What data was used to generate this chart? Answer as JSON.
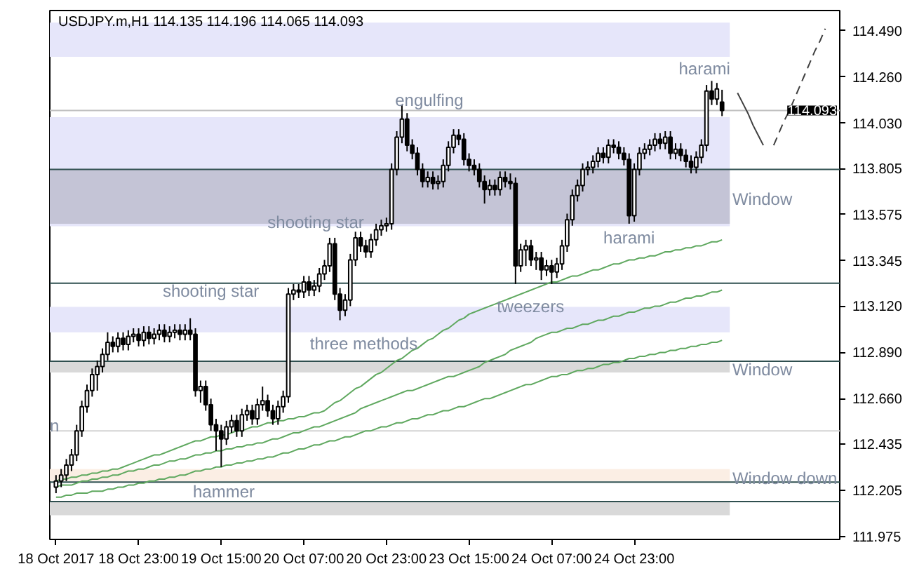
{
  "chart_data": {
    "type": "candlestick",
    "title": "USDJPY.m,H1 114.135 114.196 114.065 114.093",
    "categories": [
      "18 Oct 2017",
      null,
      null,
      null,
      null,
      null,
      null,
      null,
      null,
      null,
      null,
      null,
      null,
      null,
      null,
      null,
      "18 Oct 23:00",
      null,
      null,
      null,
      null,
      null,
      null,
      null,
      null,
      null,
      null,
      null,
      null,
      null,
      null,
      null,
      "19 Oct 15:00",
      null,
      null,
      null,
      null,
      null,
      null,
      null,
      null,
      null,
      null,
      null,
      null,
      null,
      null,
      null,
      "20 Oct 07:00",
      null,
      null,
      null,
      null,
      null,
      null,
      null,
      null,
      null,
      null,
      null,
      null,
      null,
      null,
      null,
      "20 Oct 23:00",
      null,
      null,
      null,
      null,
      null,
      null,
      null,
      null,
      null,
      null,
      null,
      null,
      null,
      null,
      null,
      "23 Oct 15:00",
      null,
      null,
      null,
      null,
      null,
      null,
      null,
      null,
      null,
      null,
      null,
      null,
      null,
      null,
      null,
      "24 Oct 07:00",
      null,
      null,
      null,
      null,
      null,
      null,
      null,
      null,
      null,
      null,
      null,
      null,
      null,
      null,
      null,
      "24 Oct 23:00",
      null,
      null,
      null,
      null,
      null,
      null,
      null,
      null,
      null,
      null,
      null,
      null,
      null,
      null,
      null,
      null,
      null,
      null,
      null,
      null,
      null,
      null,
      null,
      null,
      null,
      null,
      null,
      null,
      null,
      null,
      null,
      null,
      null,
      null,
      null,
      null,
      null
    ],
    "ohlc": [
      [
        112.22,
        112.28,
        112.19,
        112.25
      ],
      [
        112.25,
        112.31,
        112.22,
        112.28
      ],
      [
        112.28,
        112.36,
        112.25,
        112.33
      ],
      [
        112.33,
        112.41,
        112.3,
        112.38
      ],
      [
        112.38,
        112.53,
        112.35,
        112.5
      ],
      [
        112.5,
        112.65,
        112.47,
        112.62
      ],
      [
        112.62,
        112.73,
        112.59,
        112.7
      ],
      [
        112.7,
        112.81,
        112.67,
        112.78
      ],
      [
        112.78,
        112.85,
        112.7,
        112.82
      ],
      [
        112.82,
        112.91,
        112.79,
        112.88
      ],
      [
        112.88,
        112.99,
        112.85,
        112.94
      ],
      [
        112.94,
        112.97,
        112.89,
        112.92
      ],
      [
        112.92,
        112.99,
        112.89,
        112.96
      ],
      [
        112.96,
        112.99,
        112.9,
        112.93
      ],
      [
        112.93,
        113.0,
        112.9,
        112.97
      ],
      [
        112.97,
        113.01,
        112.94,
        112.98
      ],
      [
        112.98,
        113.01,
        112.92,
        112.95
      ],
      [
        112.95,
        113.02,
        112.92,
        112.99
      ],
      [
        112.99,
        113.02,
        112.93,
        112.96
      ],
      [
        112.96,
        113.01,
        112.93,
        112.98
      ],
      [
        112.98,
        113.03,
        112.95,
        113.0
      ],
      [
        113.0,
        113.03,
        112.94,
        112.97
      ],
      [
        112.97,
        113.02,
        112.94,
        112.99
      ],
      [
        112.99,
        113.03,
        112.96,
        113.0
      ],
      [
        113.0,
        113.03,
        112.95,
        112.98
      ],
      [
        112.98,
        113.03,
        112.95,
        113.0
      ],
      [
        113.0,
        113.06,
        112.95,
        112.98
      ],
      [
        112.98,
        113.01,
        112.67,
        112.7
      ],
      [
        112.7,
        112.75,
        112.64,
        112.72
      ],
      [
        112.72,
        112.75,
        112.6,
        112.63
      ],
      [
        112.63,
        112.66,
        112.5,
        112.53
      ],
      [
        112.53,
        112.56,
        112.4,
        112.5
      ],
      [
        112.5,
        112.53,
        112.32,
        112.46
      ],
      [
        112.46,
        112.55,
        112.43,
        112.52
      ],
      [
        112.52,
        112.58,
        112.49,
        112.55
      ],
      [
        112.55,
        112.58,
        112.47,
        112.5
      ],
      [
        112.5,
        112.61,
        112.47,
        112.58
      ],
      [
        112.58,
        112.63,
        112.55,
        112.6
      ],
      [
        112.6,
        112.63,
        112.53,
        112.56
      ],
      [
        112.56,
        112.66,
        112.53,
        112.63
      ],
      [
        112.63,
        112.72,
        112.6,
        112.65
      ],
      [
        112.65,
        112.68,
        112.57,
        112.6
      ],
      [
        112.6,
        112.63,
        112.53,
        112.56
      ],
      [
        112.56,
        112.65,
        112.53,
        112.62
      ],
      [
        112.62,
        112.7,
        112.59,
        112.67
      ],
      [
        112.67,
        113.21,
        112.64,
        113.18
      ],
      [
        113.18,
        113.23,
        113.15,
        113.2
      ],
      [
        113.2,
        113.23,
        113.16,
        113.19
      ],
      [
        113.19,
        113.27,
        113.16,
        113.24
      ],
      [
        113.24,
        113.27,
        113.17,
        113.2
      ],
      [
        113.2,
        113.25,
        113.17,
        113.22
      ],
      [
        113.22,
        113.31,
        113.19,
        113.28
      ],
      [
        113.28,
        113.35,
        113.25,
        113.32
      ],
      [
        113.32,
        113.46,
        113.29,
        113.43
      ],
      [
        113.43,
        113.46,
        113.15,
        113.18
      ],
      [
        113.18,
        113.21,
        113.05,
        113.1
      ],
      [
        113.1,
        113.18,
        113.07,
        113.15
      ],
      [
        113.15,
        113.38,
        113.12,
        113.35
      ],
      [
        113.35,
        113.49,
        113.32,
        113.46
      ],
      [
        113.46,
        113.49,
        113.39,
        113.42
      ],
      [
        113.42,
        113.45,
        113.36,
        113.39
      ],
      [
        113.39,
        113.48,
        113.36,
        113.45
      ],
      [
        113.45,
        113.53,
        113.42,
        113.5
      ],
      [
        113.5,
        113.55,
        113.47,
        113.52
      ],
      [
        113.52,
        113.56,
        113.49,
        113.53
      ],
      [
        113.53,
        113.83,
        113.5,
        113.8
      ],
      [
        113.8,
        113.99,
        113.77,
        113.96
      ],
      [
        113.96,
        114.12,
        113.93,
        114.05
      ],
      [
        114.05,
        114.08,
        113.89,
        113.92
      ],
      [
        113.92,
        113.95,
        113.85,
        113.88
      ],
      [
        113.88,
        113.91,
        113.77,
        113.8
      ],
      [
        113.8,
        113.83,
        113.71,
        113.74
      ],
      [
        113.74,
        113.79,
        113.71,
        113.76
      ],
      [
        113.76,
        113.79,
        113.7,
        113.73
      ],
      [
        113.73,
        113.77,
        113.7,
        113.74
      ],
      [
        113.74,
        113.85,
        113.71,
        113.82
      ],
      [
        113.82,
        113.94,
        113.79,
        113.91
      ],
      [
        113.91,
        114.0,
        113.88,
        113.97
      ],
      [
        113.97,
        114.0,
        113.92,
        113.95
      ],
      [
        113.95,
        113.98,
        113.82,
        113.85
      ],
      [
        113.85,
        113.88,
        113.79,
        113.82
      ],
      [
        113.82,
        113.85,
        113.77,
        113.8
      ],
      [
        113.8,
        113.83,
        113.71,
        113.74
      ],
      [
        113.74,
        113.77,
        113.63,
        113.7
      ],
      [
        113.7,
        113.75,
        113.67,
        113.72
      ],
      [
        113.72,
        113.75,
        113.67,
        113.7
      ],
      [
        113.7,
        113.79,
        113.67,
        113.76
      ],
      [
        113.76,
        113.79,
        113.71,
        113.74
      ],
      [
        113.74,
        113.78,
        113.7,
        113.73
      ],
      [
        113.73,
        113.76,
        113.23,
        113.32
      ],
      [
        113.32,
        113.43,
        113.29,
        113.4
      ],
      [
        113.4,
        113.45,
        113.32,
        113.42
      ],
      [
        113.42,
        113.45,
        113.32,
        113.35
      ],
      [
        113.35,
        113.39,
        113.3,
        113.36
      ],
      [
        113.36,
        113.39,
        113.25,
        113.3
      ],
      [
        113.3,
        113.35,
        113.27,
        113.32
      ],
      [
        113.32,
        113.35,
        113.23,
        113.29
      ],
      [
        113.29,
        113.36,
        113.26,
        113.33
      ],
      [
        113.33,
        113.45,
        113.3,
        113.42
      ],
      [
        113.42,
        113.58,
        113.39,
        113.55
      ],
      [
        113.55,
        113.7,
        113.52,
        113.67
      ],
      [
        113.67,
        113.75,
        113.64,
        113.72
      ],
      [
        113.72,
        113.83,
        113.69,
        113.8
      ],
      [
        113.8,
        113.84,
        113.77,
        113.81
      ],
      [
        113.81,
        113.87,
        113.78,
        113.84
      ],
      [
        113.84,
        113.91,
        113.81,
        113.88
      ],
      [
        113.88,
        113.91,
        113.83,
        113.86
      ],
      [
        113.86,
        113.95,
        113.83,
        113.92
      ],
      [
        113.92,
        113.95,
        113.88,
        113.91
      ],
      [
        113.91,
        113.94,
        113.85,
        113.88
      ],
      [
        113.88,
        113.91,
        113.82,
        113.85
      ],
      [
        113.85,
        113.88,
        113.53,
        113.57
      ],
      [
        113.57,
        113.83,
        113.54,
        113.8
      ],
      [
        113.8,
        113.91,
        113.77,
        113.88
      ],
      [
        113.88,
        113.93,
        113.85,
        113.9
      ],
      [
        113.9,
        113.95,
        113.87,
        113.92
      ],
      [
        113.92,
        113.98,
        113.89,
        113.95
      ],
      [
        113.95,
        113.98,
        113.9,
        113.93
      ],
      [
        113.93,
        113.99,
        113.9,
        113.96
      ],
      [
        113.96,
        113.99,
        113.85,
        113.88
      ],
      [
        113.88,
        113.93,
        113.85,
        113.9
      ],
      [
        113.9,
        113.93,
        113.84,
        113.87
      ],
      [
        113.87,
        113.9,
        113.81,
        113.84
      ],
      [
        113.84,
        113.87,
        113.78,
        113.81
      ],
      [
        113.81,
        113.89,
        113.78,
        113.86
      ],
      [
        113.86,
        113.95,
        113.83,
        113.92
      ],
      [
        113.92,
        114.22,
        113.89,
        114.19
      ],
      [
        114.19,
        114.24,
        114.12,
        114.15
      ],
      [
        114.15,
        114.23,
        114.12,
        114.2
      ],
      [
        114.135,
        114.196,
        114.065,
        114.093
      ],
      null,
      null,
      null,
      null,
      null,
      null,
      null,
      null,
      null,
      null,
      null,
      null,
      null,
      null,
      null,
      null,
      null,
      null,
      null,
      null
    ],
    "series": [
      {
        "type": "line",
        "color": "#5fa85f",
        "values": [
          112.25,
          112.26,
          112.26,
          112.27,
          112.27,
          112.28,
          112.28,
          112.29,
          112.29,
          112.3,
          112.3,
          112.31,
          112.31,
          112.32,
          112.33,
          112.34,
          112.35,
          112.36,
          112.37,
          112.38,
          112.38,
          112.39,
          112.4,
          112.41,
          112.42,
          112.43,
          112.44,
          112.45,
          112.45,
          112.46,
          112.47,
          112.47,
          112.48,
          112.48,
          112.49,
          112.5,
          112.5,
          112.51,
          112.52,
          112.52,
          112.53,
          112.54,
          112.54,
          112.55,
          112.55,
          112.56,
          112.56,
          112.57,
          112.57,
          112.58,
          112.59,
          112.59,
          112.6,
          112.62,
          112.64,
          112.65,
          112.67,
          112.69,
          112.71,
          112.72,
          112.74,
          112.76,
          112.78,
          112.79,
          112.81,
          112.83,
          112.85,
          112.86,
          112.88,
          112.9,
          112.91,
          112.93,
          112.95,
          112.96,
          112.98,
          113.0,
          113.01,
          113.03,
          113.05,
          113.06,
          113.08,
          113.09,
          113.1,
          113.11,
          113.12,
          113.13,
          113.14,
          113.15,
          113.16,
          113.17,
          113.18,
          113.19,
          113.2,
          113.21,
          113.22,
          113.23,
          113.24,
          113.24,
          113.25,
          113.26,
          113.27,
          113.27,
          113.28,
          113.29,
          113.3,
          113.3,
          113.31,
          113.32,
          113.33,
          113.33,
          113.34,
          113.35,
          113.35,
          113.36,
          113.36,
          113.37,
          113.37,
          113.38,
          113.39,
          113.39,
          113.4,
          113.4,
          113.41,
          113.41,
          113.42,
          113.42,
          113.43,
          113.44,
          113.44,
          113.45,
          null,
          null,
          null,
          null,
          null,
          null,
          null,
          null,
          null,
          null,
          null,
          null,
          null,
          null,
          null,
          null,
          null,
          null,
          null,
          null
        ]
      },
      {
        "type": "line",
        "color": "#5fa85f",
        "values": [
          112.22,
          112.23,
          112.23,
          112.23,
          112.24,
          112.25,
          112.25,
          112.26,
          112.26,
          112.27,
          112.27,
          112.28,
          112.28,
          112.29,
          112.3,
          112.3,
          112.31,
          112.31,
          112.32,
          112.33,
          112.33,
          112.34,
          112.35,
          112.35,
          112.36,
          112.36,
          112.37,
          112.38,
          112.38,
          112.39,
          112.39,
          112.4,
          112.4,
          112.41,
          112.41,
          112.42,
          112.42,
          112.43,
          112.43,
          112.44,
          112.44,
          112.45,
          112.46,
          112.46,
          112.47,
          112.48,
          112.49,
          112.49,
          112.5,
          112.51,
          112.52,
          112.52,
          112.53,
          112.54,
          112.55,
          112.56,
          112.57,
          112.58,
          112.59,
          112.61,
          112.62,
          112.63,
          112.64,
          112.65,
          112.66,
          112.67,
          112.68,
          112.69,
          112.7,
          112.7,
          112.71,
          112.72,
          112.73,
          112.74,
          112.75,
          112.76,
          112.77,
          112.77,
          112.78,
          112.79,
          112.8,
          112.81,
          112.82,
          112.84,
          112.85,
          112.86,
          112.87,
          112.88,
          112.9,
          112.91,
          112.92,
          112.93,
          112.94,
          112.96,
          112.97,
          112.98,
          112.99,
          112.99,
          113.0,
          113.01,
          113.01,
          113.02,
          113.03,
          113.03,
          113.04,
          113.05,
          113.05,
          113.06,
          113.07,
          113.07,
          113.08,
          113.09,
          113.09,
          113.1,
          113.11,
          113.11,
          113.12,
          113.12,
          113.13,
          113.14,
          113.14,
          113.15,
          113.16,
          113.16,
          113.17,
          113.17,
          113.18,
          113.19,
          113.19,
          113.2,
          null,
          null,
          null,
          null,
          null,
          null,
          null,
          null,
          null,
          null,
          null,
          null,
          null,
          null,
          null,
          null,
          null,
          null,
          null,
          null
        ]
      },
      {
        "type": "line",
        "color": "#5fa85f",
        "values": [
          112.17,
          112.17,
          112.18,
          112.18,
          112.19,
          112.19,
          112.19,
          112.2,
          112.2,
          112.2,
          112.21,
          112.21,
          112.22,
          112.22,
          112.23,
          112.23,
          112.24,
          112.24,
          112.25,
          112.25,
          112.26,
          112.26,
          112.27,
          112.27,
          112.28,
          112.28,
          112.29,
          112.3,
          112.3,
          112.31,
          112.31,
          112.32,
          112.32,
          112.33,
          112.33,
          112.34,
          112.34,
          112.35,
          112.35,
          112.36,
          112.36,
          112.37,
          112.37,
          112.38,
          112.39,
          112.39,
          112.4,
          112.41,
          112.41,
          112.42,
          112.43,
          112.43,
          112.44,
          112.45,
          112.45,
          112.46,
          112.47,
          112.47,
          112.48,
          112.49,
          112.5,
          112.5,
          112.51,
          112.52,
          112.52,
          112.53,
          112.54,
          112.54,
          112.55,
          112.56,
          112.56,
          112.57,
          112.58,
          112.58,
          112.59,
          112.6,
          112.6,
          112.61,
          112.62,
          112.62,
          112.63,
          112.64,
          112.65,
          112.66,
          112.66,
          112.67,
          112.68,
          112.69,
          112.7,
          112.71,
          112.72,
          112.73,
          112.73,
          112.74,
          112.75,
          112.76,
          112.77,
          112.77,
          112.78,
          112.78,
          112.79,
          112.8,
          112.8,
          112.81,
          112.81,
          112.82,
          112.83,
          112.83,
          112.84,
          112.84,
          112.85,
          112.86,
          112.86,
          112.87,
          112.87,
          112.88,
          112.88,
          112.89,
          112.89,
          112.9,
          112.9,
          112.91,
          112.91,
          112.92,
          112.92,
          112.93,
          112.93,
          112.94,
          112.94,
          112.95,
          null,
          null,
          null,
          null,
          null,
          null,
          null,
          null,
          null,
          null,
          null,
          null,
          null,
          null,
          null,
          null,
          null,
          null,
          null,
          null
        ]
      },
      {
        "type": "line",
        "color": "#404040",
        "line_style": "solid",
        "values": [
          null,
          null,
          null,
          null,
          null,
          null,
          null,
          null,
          null,
          null,
          null,
          null,
          null,
          null,
          null,
          null,
          null,
          null,
          null,
          null,
          null,
          null,
          null,
          null,
          null,
          null,
          null,
          null,
          null,
          null,
          null,
          null,
          null,
          null,
          null,
          null,
          null,
          null,
          null,
          null,
          null,
          null,
          null,
          null,
          null,
          null,
          null,
          null,
          null,
          null,
          null,
          null,
          null,
          null,
          null,
          null,
          null,
          null,
          null,
          null,
          null,
          null,
          null,
          null,
          null,
          null,
          null,
          null,
          null,
          null,
          null,
          null,
          null,
          null,
          null,
          null,
          null,
          null,
          null,
          null,
          null,
          null,
          null,
          null,
          null,
          null,
          null,
          null,
          null,
          null,
          null,
          null,
          null,
          null,
          null,
          null,
          null,
          null,
          null,
          null,
          null,
          null,
          null,
          null,
          null,
          null,
          null,
          null,
          null,
          null,
          null,
          null,
          null,
          null,
          null,
          null,
          null,
          null,
          null,
          null,
          null,
          null,
          null,
          null,
          null,
          null,
          null,
          null,
          null,
          null,
          null,
          null,
          114.18,
          114.13,
          114.08,
          114.02,
          113.97,
          113.92,
          null,
          null,
          null,
          null,
          null,
          null,
          null,
          null,
          null,
          null,
          null,
          null
        ]
      },
      {
        "type": "line",
        "color": "#404040",
        "line_style": "dashed",
        "values": [
          null,
          null,
          null,
          null,
          null,
          null,
          null,
          null,
          null,
          null,
          null,
          null,
          null,
          null,
          null,
          null,
          null,
          null,
          null,
          null,
          null,
          null,
          null,
          null,
          null,
          null,
          null,
          null,
          null,
          null,
          null,
          null,
          null,
          null,
          null,
          null,
          null,
          null,
          null,
          null,
          null,
          null,
          null,
          null,
          null,
          null,
          null,
          null,
          null,
          null,
          null,
          null,
          null,
          null,
          null,
          null,
          null,
          null,
          null,
          null,
          null,
          null,
          null,
          null,
          null,
          null,
          null,
          null,
          null,
          null,
          null,
          null,
          null,
          null,
          null,
          null,
          null,
          null,
          null,
          null,
          null,
          null,
          null,
          null,
          null,
          null,
          null,
          null,
          null,
          null,
          null,
          null,
          null,
          null,
          null,
          null,
          null,
          null,
          null,
          null,
          null,
          null,
          null,
          null,
          null,
          null,
          null,
          null,
          null,
          null,
          null,
          null,
          null,
          null,
          null,
          null,
          null,
          null,
          null,
          null,
          null,
          null,
          null,
          null,
          null,
          null,
          null,
          null,
          null,
          null,
          null,
          null,
          null,
          null,
          null,
          null,
          null,
          null,
          null,
          113.92,
          113.98,
          114.04,
          114.09,
          114.15,
          114.21,
          114.27,
          114.33,
          114.39,
          114.44,
          114.5
        ]
      }
    ],
    "ylim": [
      111.96,
      114.59
    ],
    "yticks": [
      111.975,
      112.205,
      112.435,
      {
        "value": 112.66,
        "label": "112.660"
      },
      {
        "value": 112.89,
        "label": "112.890"
      },
      {
        "value": 113.12,
        "label": "113.120"
      },
      113.345,
      113.575,
      113.805,
      {
        "value": 114.03,
        "label": "114.030"
      },
      {
        "value": 114.26,
        "label": "114.260"
      },
      {
        "value": 114.49,
        "label": "114.490"
      }
    ],
    "bands": [
      {
        "axis": "y",
        "from": 114.36,
        "to": 114.53,
        "color": "#e6e6fa"
      },
      {
        "axis": "y",
        "from": 113.517,
        "to": 114.06,
        "color": "#e6e6fa",
        "label": "Window"
      },
      {
        "axis": "y",
        "from": 113.53,
        "to": 113.8,
        "color": "#c4c4d6"
      },
      {
        "axis": "y",
        "from": 112.99,
        "to": 113.116,
        "color": "#e6e6fa"
      },
      {
        "axis": "y",
        "from": 112.79,
        "to": 112.846,
        "color": "#d9d9d9",
        "label": "Window"
      },
      {
        "axis": "y",
        "from": 112.25,
        "to": 112.31,
        "color": "#fbeee4",
        "label": "Window down"
      },
      {
        "axis": "y",
        "from": 112.08,
        "to": 112.148,
        "color": "#d9d9d9"
      }
    ],
    "ref_lines": [
      {
        "axis": "y",
        "value": 114.093,
        "label": "114.093",
        "color": "#c0c0c0"
      },
      {
        "axis": "y",
        "value": 113.8,
        "color": "#2f4f4f"
      },
      {
        "axis": "y",
        "value": 113.234,
        "color": "#2f4f4f"
      },
      {
        "axis": "y",
        "value": 112.846,
        "color": "#2f4f4f"
      },
      {
        "axis": "y",
        "value": 112.5,
        "color": "#d3d3d3"
      },
      {
        "axis": "y",
        "value": 112.245,
        "color": "#2f4f4f"
      },
      {
        "axis": "y",
        "value": 112.148,
        "color": "#2f4f4f"
      }
    ],
    "annotations": [
      "harami",
      "engulfing",
      "shooting star",
      "shooting star",
      "three methods",
      "harami",
      "tweezers",
      "hammer",
      "n"
    ]
  }
}
